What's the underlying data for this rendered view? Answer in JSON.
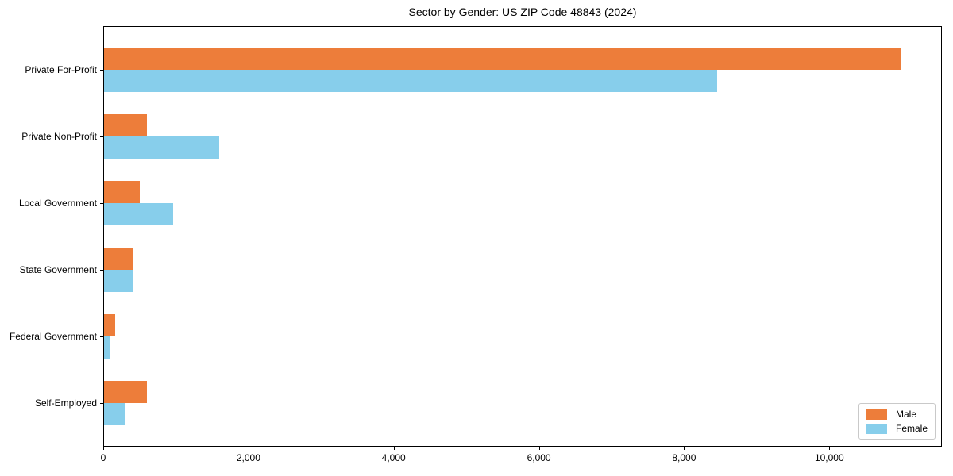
{
  "chart_data": {
    "type": "bar",
    "orientation": "horizontal",
    "title": "Sector by Gender: US ZIP Code 48843 (2024)",
    "categories": [
      "Private For-Profit",
      "Private Non-Profit",
      "Local Government",
      "State Government",
      "Federal Government",
      "Self-Employed"
    ],
    "series": [
      {
        "name": "Male",
        "color": "#ED7D3A",
        "values": [
          11000,
          590,
          490,
          410,
          150,
          590
        ]
      },
      {
        "name": "Female",
        "color": "#87CEEB",
        "values": [
          8460,
          1590,
          950,
          390,
          90,
          290
        ]
      }
    ],
    "xlabel": "",
    "ylabel": "",
    "xlim": [
      0,
      11550
    ],
    "xticks": [
      0,
      2000,
      4000,
      6000,
      8000,
      10000
    ],
    "xtick_labels": [
      "0",
      "2,000",
      "4,000",
      "6,000",
      "8,000",
      "10,000"
    ],
    "grid": false,
    "frame": "full-box",
    "legend": {
      "position": "lower right",
      "entries": [
        "Male",
        "Female"
      ]
    }
  }
}
